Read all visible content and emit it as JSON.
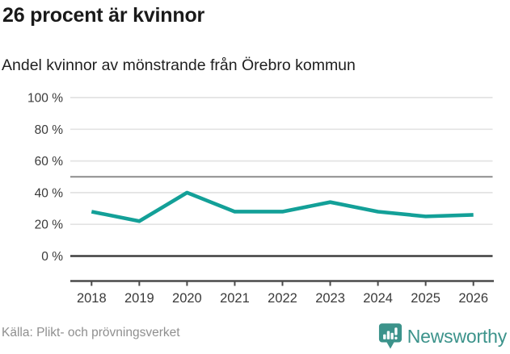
{
  "header": {
    "title": "26 procent är kvinnor",
    "subtitle": "Andel kvinnor av mönstrande från Örebro kommun"
  },
  "chart_data": {
    "type": "line",
    "x": [
      2018,
      2019,
      2020,
      2021,
      2022,
      2023,
      2024,
      2025,
      2026
    ],
    "series": [
      {
        "name": "Andel kvinnor av mönstrande från Örebro kommun",
        "values": [
          28,
          22,
          40,
          28,
          28,
          34,
          28,
          25,
          26
        ]
      }
    ],
    "title": "26 procent är kvinnor",
    "xlabel": "",
    "ylabel": "",
    "ylim": [
      0,
      100
    ],
    "yticks": [
      0,
      20,
      40,
      60,
      80,
      100
    ],
    "ytick_suffix": " %",
    "reference_line": 50,
    "grid": true,
    "legend": "none",
    "line_color": "#13a098"
  },
  "colors": {
    "accent_teal": "#13a098",
    "brand_teal": "#3c938b",
    "gridline": "#e3e3e3",
    "reference_line": "#8c8c8c",
    "zero_line": "#3f3f3f",
    "axis_line": "#4a4a4a",
    "axis_text": "#3a3a3a",
    "source_text": "#8f8f8f"
  },
  "footer": {
    "source": "Källa: Plikt- och prövningsverket",
    "brand": "Newsworthy"
  },
  "icons": {
    "logo": "newsworthy-speech-bubble-bar-chart-icon"
  }
}
